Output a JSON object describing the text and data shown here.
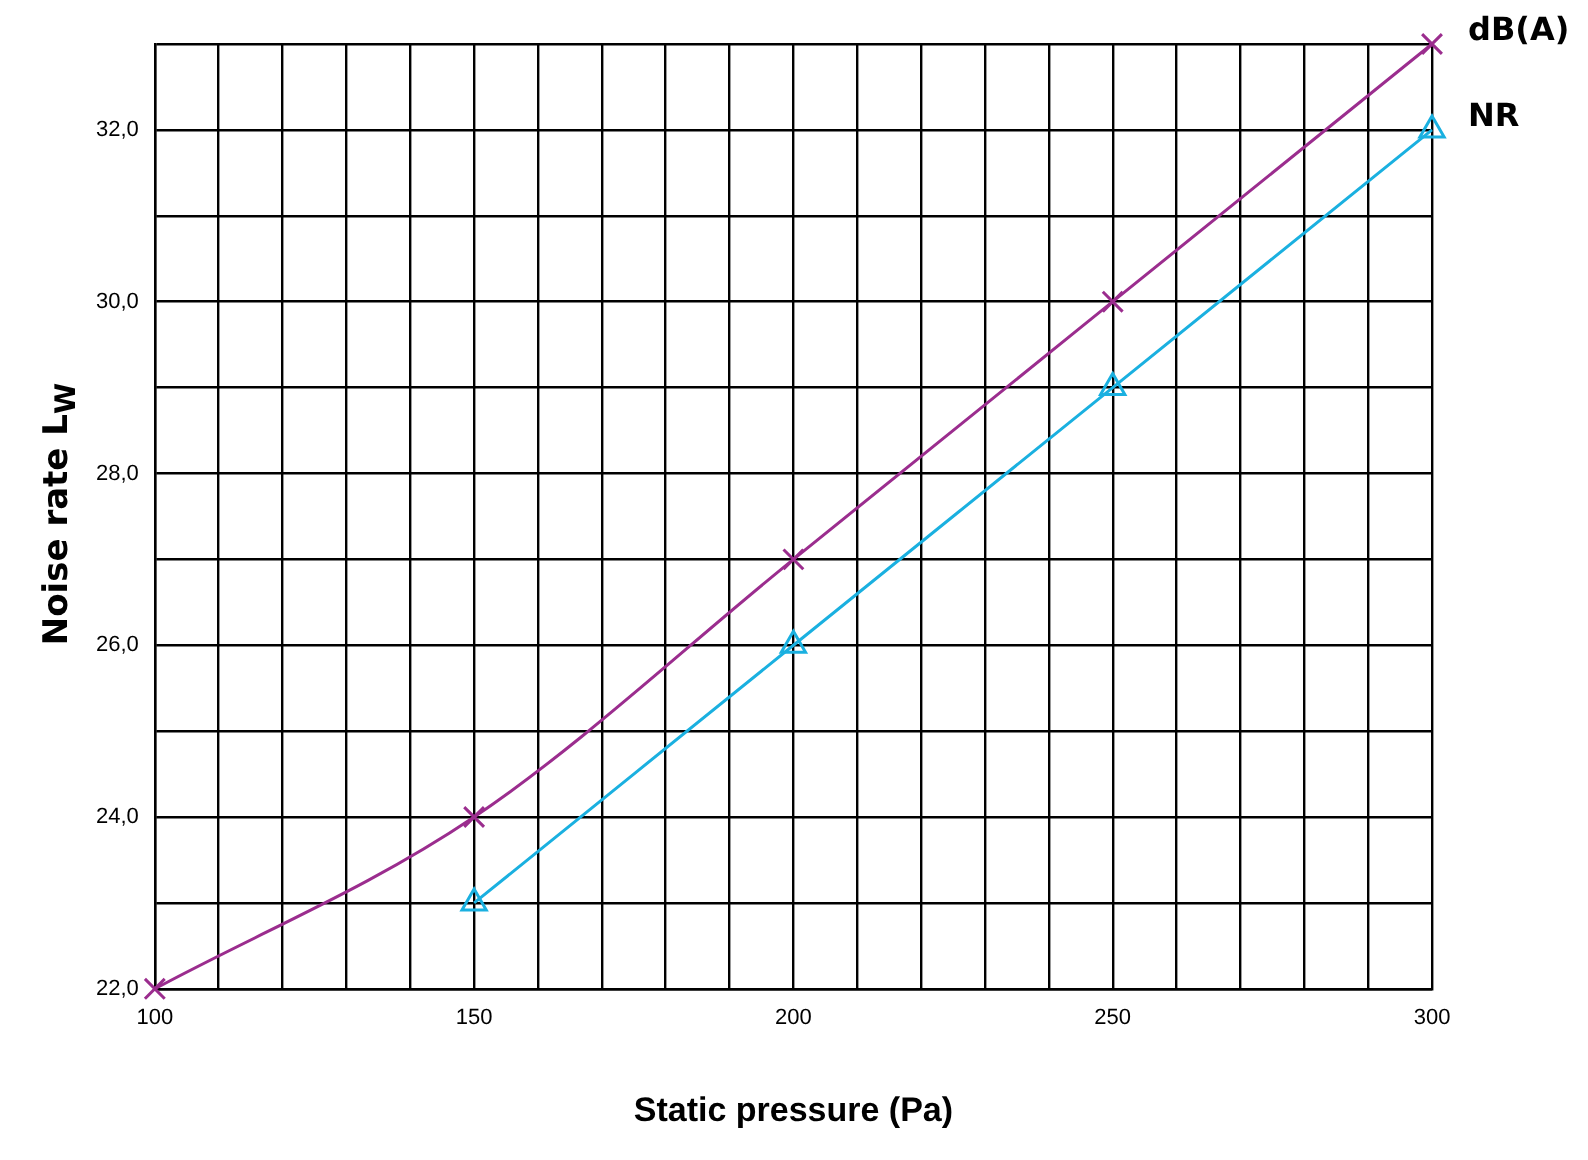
{
  "chart_data": {
    "type": "line",
    "xlabel": "Static pressure (Pa)",
    "ylabel": "Noise rate L$_{W}$",
    "xlim": [
      100,
      300
    ],
    "xticks": [
      100,
      {
        "value": 110,
        "label": null
      },
      {
        "value": 120,
        "label": null
      },
      {
        "value": 130,
        "label": null
      },
      {
        "value": 140,
        "label": null
      },
      150,
      {
        "value": 160,
        "label": null
      },
      {
        "value": 170,
        "label": null
      },
      {
        "value": 180,
        "label": null
      },
      {
        "value": 190,
        "label": null
      },
      200,
      {
        "value": 210,
        "label": null
      },
      {
        "value": 220,
        "label": null
      },
      {
        "value": 230,
        "label": null
      },
      {
        "value": 240,
        "label": null
      },
      250,
      {
        "value": 260,
        "label": null
      },
      {
        "value": 270,
        "label": null
      },
      {
        "value": 280,
        "label": null
      },
      {
        "value": 290,
        "label": null
      },
      300
    ],
    "ylim": [
      22,
      33
    ],
    "yticks": [
      {
        "value": 22,
        "label": "22,0"
      },
      {
        "value": 23,
        "label": null
      },
      {
        "value": 24,
        "label": "24,0"
      },
      {
        "value": 25,
        "label": null
      },
      {
        "value": 26,
        "label": "26,0"
      },
      {
        "value": 27,
        "label": null
      },
      {
        "value": 28,
        "label": "28,0"
      },
      {
        "value": 29,
        "label": null
      },
      {
        "value": 30,
        "label": "30,0"
      },
      {
        "value": 31,
        "label": null
      },
      {
        "value": 32,
        "label": "32,0"
      },
      {
        "value": 33,
        "label": null
      }
    ],
    "grid": true,
    "legend": false,
    "line_style": "solid",
    "series": [
      {
        "name": "dB(A)",
        "color": "#9b2d8e",
        "marker": "cross",
        "x": [
          100,
          150,
          200,
          250,
          300
        ],
        "values": [
          22,
          24,
          27,
          30,
          33
        ]
      },
      {
        "name": "NR",
        "color": "#1ab0e0",
        "marker": "triangle",
        "x": [
          150,
          200,
          250,
          300
        ],
        "values": [
          23,
          26,
          29,
          32
        ]
      }
    ]
  }
}
